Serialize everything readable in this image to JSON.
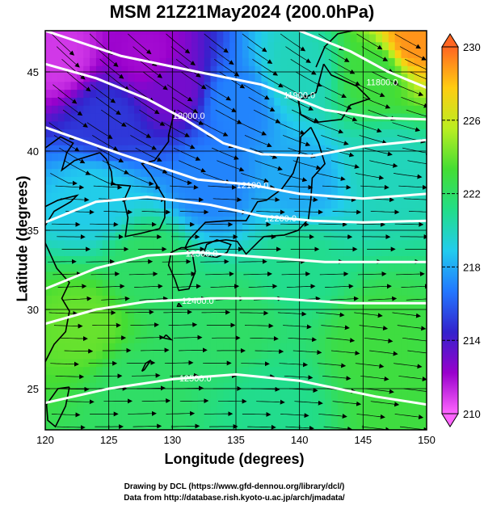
{
  "title": "MSM 21Z21May2024 (200.0hPa)",
  "xlabel": "Longitude (degrees)",
  "ylabel": "Latitude  (degrees)",
  "credits": {
    "line1": "Drawing by DCL (https://www.gfd-dennou.org/library/dcl/)",
    "line2": "Data from http://database.rish.kyoto-u.ac.jp/arch/jmadata/"
  },
  "chart_data": {
    "type": "heatmap",
    "title": "MSM 21Z21May2024 (200.0hPa)",
    "xlabel": "Longitude (degrees)",
    "ylabel": "Latitude  (degrees)",
    "xlim": [
      120,
      150
    ],
    "ylim": [
      22.4,
      47.6
    ],
    "xticks": [
      120,
      125,
      130,
      135,
      140,
      145,
      150
    ],
    "yticks": [
      25,
      30,
      35,
      40,
      45
    ],
    "grid": true,
    "colorbar": {
      "min": 210,
      "max": 230,
      "ticks": [
        210,
        214,
        218,
        222,
        226,
        230
      ],
      "colors": [
        "#ff66ff",
        "#9900cc",
        "#3322cc",
        "#2277ff",
        "#22ccee",
        "#22dd88",
        "#44dd33",
        "#bbee22",
        "#ffcc11",
        "#ff6622"
      ]
    },
    "temperature_field": [
      {
        "lon": 121,
        "lat": 46,
        "value": 211
      },
      {
        "lon": 128,
        "lat": 46,
        "value": 212
      },
      {
        "lon": 130,
        "lat": 44,
        "value": 213
      },
      {
        "lon": 125,
        "lat": 42,
        "value": 215
      },
      {
        "lon": 135,
        "lat": 43,
        "value": 217
      },
      {
        "lon": 140,
        "lat": 45,
        "value": 220
      },
      {
        "lon": 146,
        "lat": 45,
        "value": 223
      },
      {
        "lon": 149,
        "lat": 47,
        "value": 229
      },
      {
        "lon": 133,
        "lat": 38,
        "value": 217
      },
      {
        "lon": 124,
        "lat": 37,
        "value": 219
      },
      {
        "lon": 140,
        "lat": 38,
        "value": 218
      },
      {
        "lon": 147,
        "lat": 39,
        "value": 220
      },
      {
        "lon": 128,
        "lat": 33,
        "value": 222
      },
      {
        "lon": 140,
        "lat": 33,
        "value": 221
      },
      {
        "lon": 123,
        "lat": 29,
        "value": 224
      },
      {
        "lon": 135,
        "lat": 29,
        "value": 222
      },
      {
        "lon": 146,
        "lat": 28,
        "value": 223
      },
      {
        "lon": 127,
        "lat": 25,
        "value": 222
      },
      {
        "lon": 138,
        "lat": 24,
        "value": 221
      },
      {
        "lon": 148,
        "lat": 24,
        "value": 223
      }
    ],
    "contours": [
      {
        "label": "11900.0",
        "label_at": [
          140.0,
          43.5
        ],
        "points": [
          [
            120,
            47.6
          ],
          [
            126,
            46.0
          ],
          [
            132,
            45.0
          ],
          [
            137,
            44.2
          ],
          [
            142,
            42.6
          ],
          [
            146,
            42.1
          ],
          [
            150,
            42.0
          ]
        ]
      },
      {
        "label": "11800.0",
        "label_at": [
          146.5,
          44.3
        ],
        "points": [
          [
            140,
            47.6
          ],
          [
            144,
            46.3
          ],
          [
            147,
            45.0
          ],
          [
            150,
            44.0
          ]
        ]
      },
      {
        "label": "12000.0",
        "label_at": [
          131.3,
          42.2
        ],
        "points": [
          [
            120,
            45.5
          ],
          [
            124,
            44.6
          ],
          [
            128,
            43.3
          ],
          [
            131,
            42.0
          ],
          [
            134,
            40.5
          ],
          [
            137,
            39.8
          ],
          [
            141,
            39.7
          ],
          [
            145,
            40.3
          ],
          [
            150,
            40.7
          ]
        ]
      },
      {
        "label": "12100.0",
        "label_at": [
          136.3,
          37.8
        ],
        "points": [
          [
            120,
            41.5
          ],
          [
            126,
            39.8
          ],
          [
            132,
            38.2
          ],
          [
            136,
            37.9
          ],
          [
            140,
            37.3
          ],
          [
            145,
            37.0
          ],
          [
            150,
            37.3
          ]
        ]
      },
      {
        "label": "12200.0",
        "label_at": [
          138.5,
          35.7
        ],
        "points": [
          [
            120,
            35.5
          ],
          [
            124,
            36.8
          ],
          [
            128,
            37.1
          ],
          [
            133,
            36.6
          ],
          [
            137,
            35.9
          ],
          [
            141,
            35.6
          ],
          [
            145,
            35.5
          ],
          [
            150,
            35.6
          ]
        ]
      },
      {
        "label": "12300.0",
        "label_at": [
          132.3,
          33.5
        ],
        "points": [
          [
            120,
            31.3
          ],
          [
            124,
            32.6
          ],
          [
            128,
            33.4
          ],
          [
            132,
            33.6
          ],
          [
            137,
            33.3
          ],
          [
            142,
            33.0
          ],
          [
            150,
            33.0
          ]
        ]
      },
      {
        "label": "12400.0",
        "label_at": [
          132.0,
          30.5
        ],
        "points": [
          [
            120,
            29.1
          ],
          [
            124,
            30.0
          ],
          [
            128,
            30.5
          ],
          [
            133,
            30.7
          ],
          [
            138,
            30.7
          ],
          [
            144,
            30.4
          ],
          [
            150,
            30.4
          ]
        ]
      },
      {
        "label": "12500.0",
        "label_at": [
          131.8,
          25.6
        ],
        "points": [
          [
            120,
            24.1
          ],
          [
            125,
            25.0
          ],
          [
            130,
            25.6
          ],
          [
            135,
            25.9
          ],
          [
            140,
            25.5
          ],
          [
            146,
            24.5
          ],
          [
            150,
            24.0
          ]
        ]
      }
    ]
  }
}
